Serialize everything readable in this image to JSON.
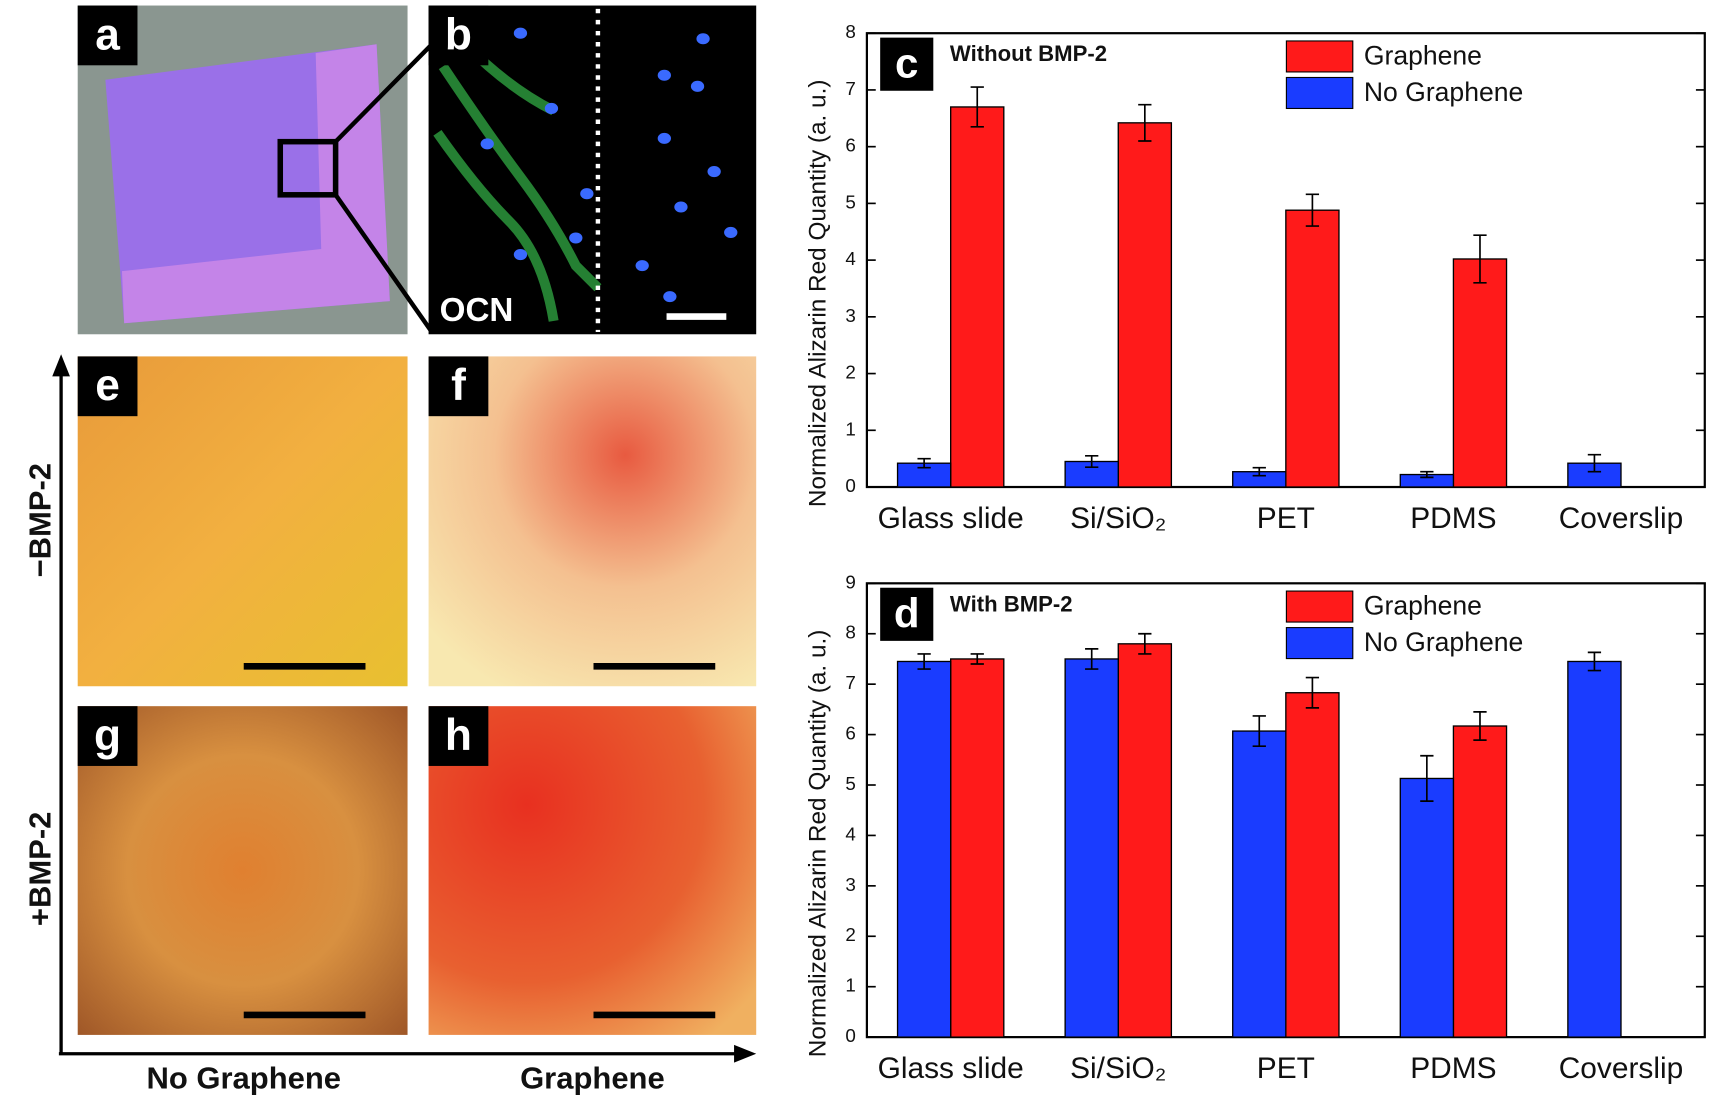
{
  "panels": {
    "labels": [
      "a",
      "b",
      "e",
      "f",
      "g",
      "h"
    ],
    "marker": "OCN",
    "row_labels": [
      "−BMP-2",
      "+BMP-2"
    ],
    "col_labels": [
      "No Graphene",
      "Graphene"
    ]
  },
  "chart_data": [
    {
      "type": "bar",
      "panel_label": "c",
      "title": "Without BMP-2",
      "ylabel": "Normalized Alizarin Red Quantity (a. u.)",
      "categories": [
        "Glass slide",
        "Si/SiO₂",
        "PET",
        "PDMS",
        "Coverslip"
      ],
      "series": [
        {
          "name": "Graphene",
          "color": "#ff1a1a",
          "values": [
            6.7,
            6.42,
            4.88,
            4.02,
            null
          ],
          "errors": [
            0.35,
            0.32,
            0.28,
            0.42,
            null
          ]
        },
        {
          "name": "No Graphene",
          "color": "#1a3cff",
          "values": [
            0.42,
            0.45,
            0.27,
            0.22,
            0.42
          ],
          "errors": [
            0.08,
            0.1,
            0.07,
            0.05,
            0.15
          ]
        }
      ],
      "ylim": [
        0,
        8
      ],
      "yticks": [
        0,
        1,
        2,
        3,
        4,
        5,
        6,
        7,
        8
      ]
    },
    {
      "type": "bar",
      "panel_label": "d",
      "title": "With BMP-2",
      "ylabel": "Normalized Alizarin Red Quantity (a. u.)",
      "categories": [
        "Glass slide",
        "Si/SiO₂",
        "PET",
        "PDMS",
        "Coverslip"
      ],
      "series": [
        {
          "name": "Graphene",
          "color": "#ff1a1a",
          "values": [
            7.5,
            7.8,
            6.83,
            6.17,
            null
          ],
          "errors": [
            0.1,
            0.2,
            0.3,
            0.28,
            null
          ]
        },
        {
          "name": "No Graphene",
          "color": "#1a3cff",
          "values": [
            7.45,
            7.5,
            6.07,
            5.13,
            7.45
          ],
          "errors": [
            0.15,
            0.2,
            0.3,
            0.45,
            0.18
          ]
        }
      ],
      "ylim": [
        0,
        9
      ],
      "yticks": [
        0,
        1,
        2,
        3,
        4,
        5,
        6,
        7,
        8,
        9
      ]
    }
  ]
}
